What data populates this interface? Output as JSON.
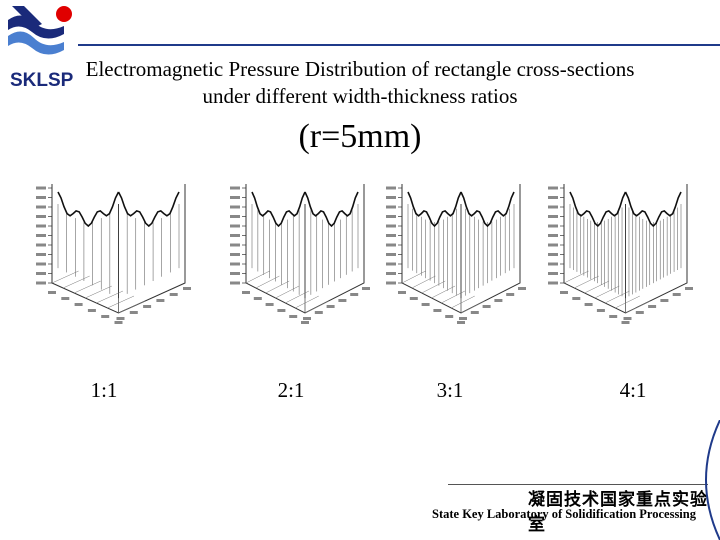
{
  "logo": {
    "text": "SKLSP"
  },
  "title": "Electromagnetic Pressure Distribution of rectangle cross-sections under different width-thickness ratios",
  "subtitle": "(r=5mm)",
  "panels": [
    {
      "ratio": "1:1"
    },
    {
      "ratio": "2:1"
    },
    {
      "ratio": "3:1"
    },
    {
      "ratio": "4:1"
    }
  ],
  "footer": {
    "cn": "凝固技术国家重点实验室",
    "en": "State Key Laboratory of Solidification Processing"
  },
  "colors": {
    "accent": "#1f3a8a",
    "logo_blue": "#1a2a7a",
    "logo_red": "#e00000"
  }
}
